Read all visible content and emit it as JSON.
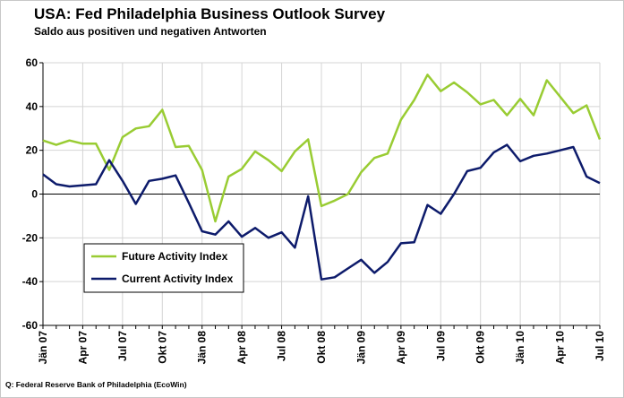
{
  "chart_data": {
    "type": "line",
    "title": "USA: Fed Philadelphia Business Outlook Survey",
    "subtitle": "Saldo aus positiven und negativen Antworten",
    "source": "Q: Federal Reserve Bank of Philadelphia (EcoWin)",
    "ylim": [
      -60,
      60
    ],
    "yticks": [
      -60,
      -40,
      -20,
      0,
      20,
      40,
      60
    ],
    "grid": true,
    "legend_position": "bottom-left",
    "x": [
      "2007-01",
      "2007-02",
      "2007-03",
      "2007-04",
      "2007-05",
      "2007-06",
      "2007-07",
      "2007-08",
      "2007-09",
      "2007-10",
      "2007-11",
      "2007-12",
      "2008-01",
      "2008-02",
      "2008-03",
      "2008-04",
      "2008-05",
      "2008-06",
      "2008-07",
      "2008-08",
      "2008-09",
      "2008-10",
      "2008-11",
      "2008-12",
      "2009-01",
      "2009-02",
      "2009-03",
      "2009-04",
      "2009-05",
      "2009-06",
      "2009-07",
      "2009-08",
      "2009-09",
      "2009-10",
      "2009-11",
      "2009-12",
      "2010-01",
      "2010-02",
      "2010-03",
      "2010-04",
      "2010-05",
      "2010-06",
      "2010-07"
    ],
    "x_tick_labels": [
      {
        "x": "2007-01",
        "label": "Jän 07"
      },
      {
        "x": "2007-04",
        "label": "Apr 07"
      },
      {
        "x": "2007-07",
        "label": "Jul 07"
      },
      {
        "x": "2007-10",
        "label": "Okt 07"
      },
      {
        "x": "2008-01",
        "label": "Jän 08"
      },
      {
        "x": "2008-04",
        "label": "Apr 08"
      },
      {
        "x": "2008-07",
        "label": "Jul 08"
      },
      {
        "x": "2008-10",
        "label": "Okt 08"
      },
      {
        "x": "2009-01",
        "label": "Jän 09"
      },
      {
        "x": "2009-04",
        "label": "Apr 09"
      },
      {
        "x": "2009-07",
        "label": "Jul 09"
      },
      {
        "x": "2009-10",
        "label": "Okt 09"
      },
      {
        "x": "2010-01",
        "label": "Jän 10"
      },
      {
        "x": "2010-04",
        "label": "Apr 10"
      },
      {
        "x": "2010-07",
        "label": "Jul 10"
      }
    ],
    "series": [
      {
        "name": "Future Activity Index",
        "color": "#99cc33",
        "values": [
          24.5,
          22.5,
          24.5,
          23,
          23,
          11,
          26,
          30,
          31,
          38.5,
          21.5,
          22,
          11,
          -12.5,
          8,
          11.5,
          19.5,
          15.5,
          10.5,
          19.5,
          25,
          -5.5,
          -3,
          0,
          10,
          16.5,
          18.5,
          34,
          43,
          54.5,
          47,
          51,
          46.5,
          41,
          43,
          36,
          43.5,
          36,
          52,
          44.5,
          37,
          40.5,
          25
        ]
      },
      {
        "name": "Current Activity Index",
        "color": "#0d1b6b",
        "values": [
          9,
          4.5,
          3.5,
          4,
          4.5,
          15.5,
          6,
          -4.5,
          6,
          7,
          8.5,
          -4,
          -17,
          -18.5,
          -12.5,
          -19.5,
          -15.5,
          -20,
          -17.5,
          -24.5,
          -1,
          -39,
          -38,
          -34,
          -30,
          -36,
          -31,
          -22.5,
          -22,
          -5,
          -9,
          0,
          10.5,
          12,
          19,
          22.5,
          15,
          17.5,
          18.5,
          20,
          21.5,
          8,
          5
        ]
      }
    ]
  }
}
